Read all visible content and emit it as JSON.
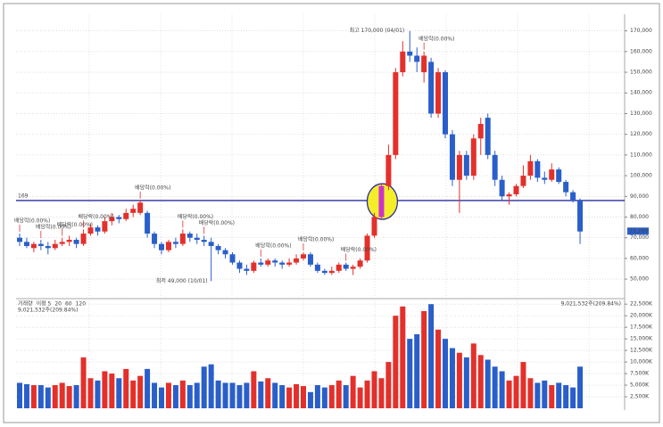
{
  "chart_data": {
    "type": "candlestick",
    "open": [
      70000,
      68000,
      65000,
      67000,
      66000,
      65000,
      67000,
      68000,
      69000,
      67000,
      72000,
      75000,
      73000,
      78000,
      80000,
      79000,
      82000,
      82000,
      82000,
      72000,
      67000,
      64000,
      68000,
      67000,
      72000,
      70000,
      69000,
      68000,
      66000,
      64000,
      62000,
      58000,
      55000,
      54000,
      58000,
      57000,
      59000,
      58000,
      57000,
      58000,
      60000,
      62000,
      57000,
      54000,
      53000,
      54000,
      57000,
      55000,
      56000,
      59000,
      71000,
      80000,
      95000,
      110000,
      150000,
      160000,
      158000,
      150000,
      155000,
      130000,
      150000,
      120000,
      98000,
      110000,
      100000,
      118000,
      128000,
      110000,
      98000,
      90000,
      91000,
      95000,
      100000,
      107000,
      99000,
      98000,
      103000,
      97000,
      92000,
      88000
    ],
    "high": [
      72000,
      70000,
      68000,
      69000,
      68000,
      69000,
      70000,
      71000,
      70000,
      74000,
      77000,
      76000,
      80000,
      82000,
      81000,
      84000,
      86000,
      88000,
      83000,
      73000,
      68000,
      69000,
      70000,
      74000,
      73000,
      72000,
      71000,
      70000,
      67000,
      65000,
      63000,
      59000,
      57000,
      59000,
      60000,
      60000,
      60000,
      59000,
      60000,
      62000,
      63000,
      63000,
      58000,
      55000,
      56000,
      58000,
      58000,
      57000,
      60000,
      72000,
      82000,
      96000,
      115000,
      152000,
      165000,
      170000,
      162000,
      160000,
      157000,
      152000,
      151000,
      122000,
      112000,
      112000,
      120000,
      128000,
      130000,
      112000,
      100000,
      92000,
      96000,
      105000,
      110000,
      108000,
      102000,
      106000,
      104000,
      98000,
      93000,
      89000
    ],
    "low": [
      66000,
      65000,
      63000,
      64000,
      62000,
      64000,
      66000,
      66000,
      65000,
      66000,
      71000,
      71000,
      72000,
      76000,
      77000,
      78000,
      80000,
      81000,
      70000,
      65000,
      62000,
      63000,
      65000,
      66000,
      68000,
      67000,
      66000,
      49000,
      62000,
      60000,
      57000,
      53000,
      52000,
      53000,
      56000,
      56000,
      56000,
      55000,
      56000,
      57000,
      59000,
      56000,
      53000,
      52000,
      52000,
      53000,
      54000,
      52000,
      55000,
      58000,
      70000,
      79000,
      93000,
      108000,
      148000,
      155000,
      150000,
      145000,
      128000,
      128000,
      118000,
      95000,
      82000,
      98000,
      98000,
      110000,
      108000,
      95000,
      88000,
      86000,
      90000,
      94000,
      98000,
      97000,
      96000,
      97000,
      96000,
      90000,
      87000,
      67000
    ],
    "close": [
      68000,
      66000,
      67000,
      66000,
      65000,
      67000,
      68000,
      69000,
      67000,
      72000,
      75000,
      73000,
      78000,
      80000,
      79000,
      82000,
      84000,
      87000,
      72000,
      67000,
      64000,
      68000,
      67000,
      72000,
      70000,
      69000,
      68000,
      66000,
      64000,
      62000,
      58000,
      55000,
      54000,
      58000,
      57000,
      59000,
      58000,
      57000,
      58000,
      60000,
      62000,
      57000,
      54000,
      53000,
      54000,
      57000,
      55000,
      56000,
      59000,
      71000,
      80000,
      95000,
      110000,
      150000,
      160000,
      158000,
      155000,
      158000,
      130000,
      150000,
      120000,
      98000,
      110000,
      100000,
      118000,
      125000,
      110000,
      98000,
      90000,
      91000,
      95000,
      100000,
      107000,
      99000,
      98000,
      103000,
      97000,
      92000,
      88000,
      73000
    ],
    "volume": [
      5500,
      5200,
      5000,
      5000,
      4500,
      5000,
      5500,
      4800,
      5000,
      11000,
      6500,
      6000,
      8000,
      7500,
      6500,
      8500,
      6000,
      7000,
      8500,
      5500,
      4500,
      5500,
      5000,
      6000,
      5000,
      5500,
      9000,
      9500,
      6000,
      5500,
      5500,
      5000,
      5500,
      8000,
      5800,
      6500,
      5500,
      5000,
      4500,
      5200,
      4800,
      3500,
      5000,
      4500,
      5000,
      6000,
      5000,
      7000,
      4500,
      6000,
      8000,
      6500,
      10000,
      20000,
      22000,
      15000,
      16000,
      21000,
      22500,
      17000,
      15000,
      13000,
      12000,
      11000,
      14000,
      11500,
      10500,
      9000,
      8000,
      6000,
      7000,
      10000,
      6500,
      5500,
      6000,
      5000,
      5500,
      5000,
      4500,
      9000
    ],
    "up_color": "#e3302b",
    "down_color": "#2a5fc9",
    "ylim": [
      41000,
      175000
    ],
    "yticks": [
      {
        "value": 50000,
        "label": "50,000"
      },
      {
        "value": 60000,
        "label": "60,000"
      },
      {
        "value": 70000,
        "label": "70,000"
      },
      {
        "value": 80000,
        "label": "80,000"
      },
      {
        "value": 90000,
        "label": "90,000"
      },
      {
        "value": 100000,
        "label": "100,000"
      },
      {
        "value": 110000,
        "label": "110,000"
      },
      {
        "value": 120000,
        "label": "120,000"
      },
      {
        "value": 130000,
        "label": "130,000"
      },
      {
        "value": 140000,
        "label": "140,000"
      },
      {
        "value": 150000,
        "label": "150,000"
      },
      {
        "value": 160000,
        "label": "160,000"
      },
      {
        "value": 170000,
        "label": "170,000"
      }
    ],
    "volume_ylim": [
      0,
      23500
    ],
    "volume_ticks": [
      {
        "value": 2500,
        "label": "2,500K"
      },
      {
        "value": 5000,
        "label": "5,000K"
      },
      {
        "value": 7500,
        "label": "7,500K"
      },
      {
        "value": 10000,
        "label": "10,000K"
      },
      {
        "value": 12500,
        "label": "12,500K"
      },
      {
        "value": 15000,
        "label": "15,000K"
      },
      {
        "value": 17500,
        "label": "17,500K"
      },
      {
        "value": 20000,
        "label": "20,000K"
      },
      {
        "value": 22500,
        "label": "22,500K"
      }
    ],
    "grid": true,
    "hline": {
      "value": 88000,
      "label": "169",
      "color": "#2b2f9e"
    },
    "current": {
      "value": 73200,
      "label": "73,200"
    },
    "high_label": {
      "index": 55,
      "label": "최고 170,000 (04/01)"
    },
    "low_label": {
      "index": 27,
      "label": "최저 49,000 (10/01)"
    },
    "highlight": {
      "index": 51,
      "color": "#cc33cc"
    },
    "events": [
      {
        "index": 0,
        "label": "배당락(0.00%)"
      },
      {
        "index": 3,
        "label": "배당락(0.00%)"
      },
      {
        "index": 6,
        "label": "배당락(0.00%)"
      },
      {
        "index": 9,
        "label": "배당락(0.00%)"
      },
      {
        "index": 17,
        "label": "배당락(0.00%)"
      },
      {
        "index": 23,
        "label": "배당락(0.00%)"
      },
      {
        "index": 26,
        "label": "배당락(0.00%)"
      },
      {
        "index": 34,
        "label": "배당락(0.00%)"
      },
      {
        "index": 40,
        "label": "배당락(0.00%)"
      },
      {
        "index": 46,
        "label": "배당락(0.00%)"
      },
      {
        "index": 57,
        "label": "배당락(0.00%)"
      }
    ],
    "volume_legend": [
      "거래량",
      "이평 5",
      "20",
      "60",
      "120"
    ],
    "volume_legend_colors": [
      "#555555",
      "#d44",
      "#c9a020",
      "#3a3",
      "#888"
    ],
    "volume_info": "9,021,532주(209.84%)"
  }
}
